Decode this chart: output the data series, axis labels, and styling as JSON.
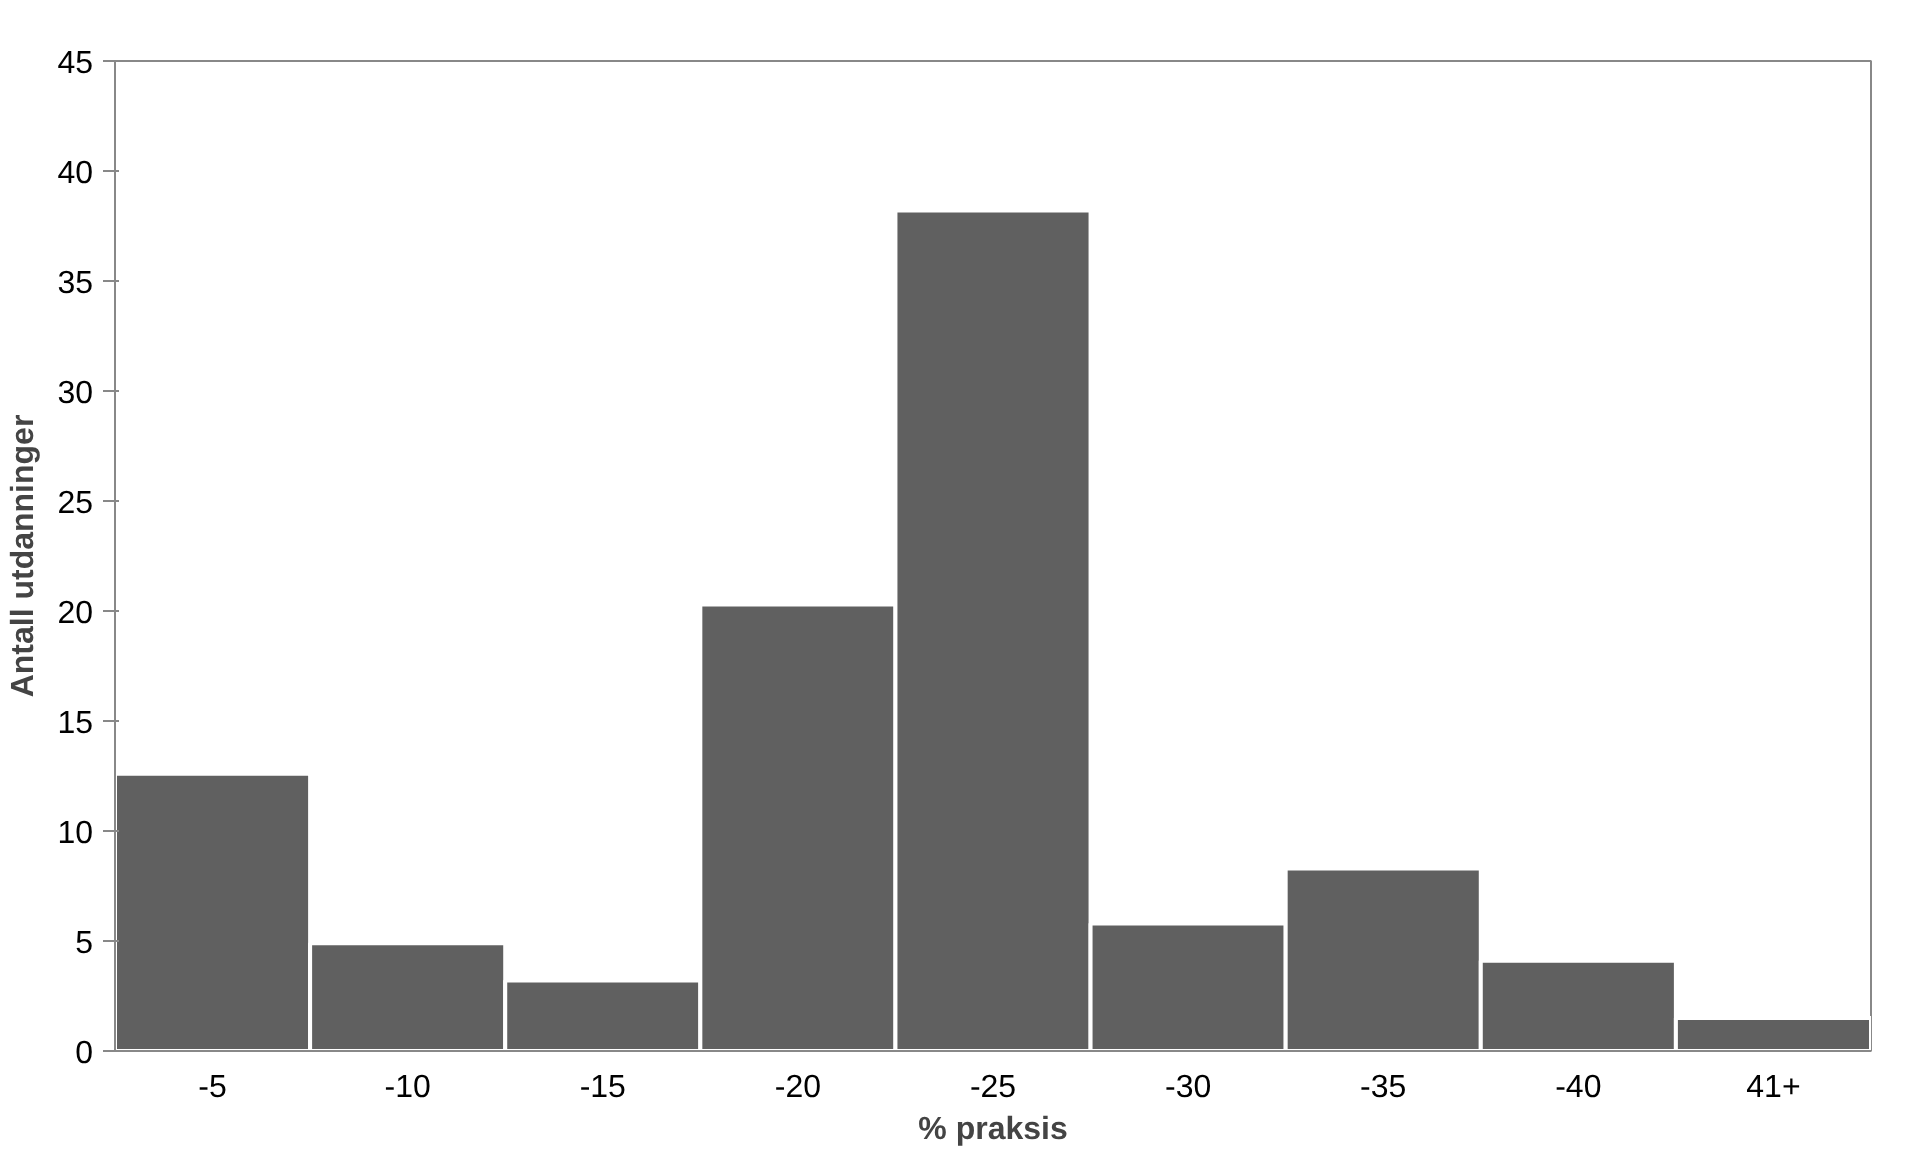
{
  "chart_data": {
    "type": "bar",
    "xlabel": "% praksis",
    "ylabel": "Antall utdanninger",
    "categories": [
      "-5",
      "-10",
      "-15",
      "-20",
      "-25",
      "-30",
      "-35",
      "-40",
      "41+"
    ],
    "values": [
      12.6,
      4.9,
      3.2,
      20.3,
      38.2,
      5.8,
      8.3,
      4.1,
      1.5
    ],
    "color": "#606060",
    "ylim": [
      0,
      45
    ],
    "yticks": [
      0,
      5,
      10,
      15,
      20,
      25,
      30,
      35,
      40,
      45
    ],
    "grid": false
  }
}
